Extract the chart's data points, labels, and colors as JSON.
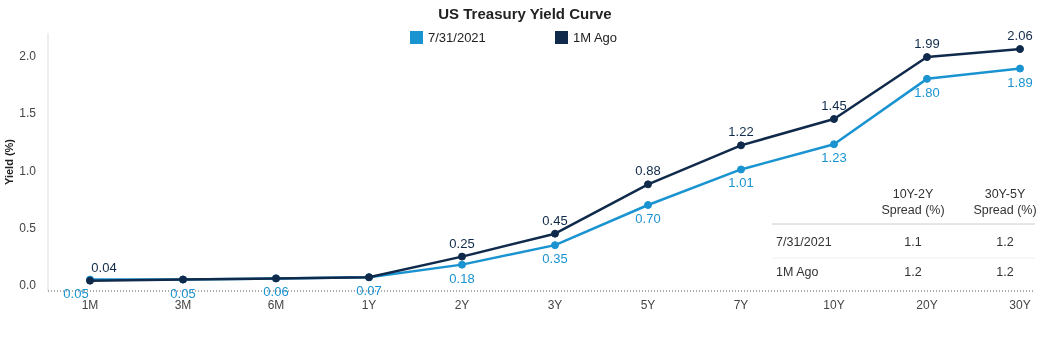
{
  "chart_data": {
    "type": "line",
    "title": "US Treasury Yield Curve",
    "ylabel": "Yield (%)",
    "categories": [
      "1M",
      "3M",
      "6M",
      "1Y",
      "2Y",
      "3Y",
      "5Y",
      "7Y",
      "10Y",
      "20Y",
      "30Y"
    ],
    "series": [
      {
        "name": "7/31/2021",
        "color": "#1a93d1",
        "values": [
          0.05,
          0.05,
          0.06,
          0.07,
          0.18,
          0.35,
          0.7,
          1.01,
          1.23,
          1.8,
          1.89
        ],
        "value_labels": [
          "0.05",
          "0.05",
          "0.06",
          "0.07",
          "0.18",
          "0.35",
          "0.70",
          "1.01",
          "1.23",
          "1.80",
          "1.89"
        ]
      },
      {
        "name": "1M Ago",
        "color": "#0f2a4a",
        "values": [
          0.04,
          0.05,
          0.06,
          0.07,
          0.25,
          0.45,
          0.88,
          1.22,
          1.45,
          1.99,
          2.06
        ],
        "value_labels": [
          "0.04",
          null,
          null,
          null,
          "0.25",
          "0.45",
          "0.88",
          "1.22",
          "1.45",
          "1.99",
          "2.06"
        ]
      }
    ],
    "ylim": [
      -0.05,
      2.2
    ],
    "yticks": [
      {
        "value": 0,
        "label": "0.0"
      },
      {
        "value": 0.5,
        "label": "0.5"
      },
      {
        "value": 1,
        "label": "1.0"
      },
      {
        "value": 1.5,
        "label": "1.5"
      },
      {
        "value": 2,
        "label": "2.0"
      }
    ],
    "grid": false,
    "legend": "top",
    "marker": "circle",
    "line_style": "solid",
    "annotations": [
      "10Y-2Y Spread (%)",
      "30Y-5Y Spread (%)",
      "7/31/2021",
      "1.1",
      "1.2",
      "1M Ago",
      "1.2",
      "1.2"
    ]
  }
}
